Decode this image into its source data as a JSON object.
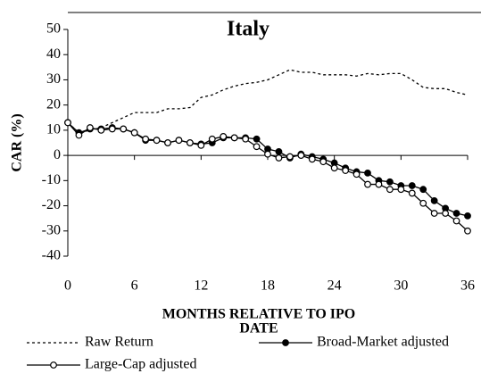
{
  "chart_data": {
    "type": "line",
    "title": "Italy",
    "ylabel": "CAR (%)",
    "xlabel": [
      "MONTHS RELATIVE TO IPO",
      "DATE"
    ],
    "x": [
      0,
      1,
      2,
      3,
      4,
      5,
      6,
      7,
      8,
      9,
      10,
      11,
      12,
      13,
      14,
      15,
      16,
      17,
      18,
      19,
      20,
      21,
      22,
      23,
      24,
      25,
      26,
      27,
      28,
      29,
      30,
      31,
      32,
      33,
      34,
      35,
      36
    ],
    "xlim": [
      0,
      36
    ],
    "xticks": [
      0,
      6,
      12,
      18,
      24,
      30,
      36
    ],
    "ylim": [
      -40,
      50
    ],
    "yticks": [
      -40,
      -30,
      -20,
      -10,
      0,
      10,
      20,
      30,
      40,
      50
    ],
    "series": [
      {
        "name": "Raw Return",
        "color": "#000000",
        "dash": "dotted",
        "marker": null,
        "values": [
          13,
          9,
          10,
          11,
          13,
          15,
          17,
          17,
          17,
          18.5,
          18.5,
          19,
          23,
          24,
          26,
          27.5,
          28.5,
          29,
          30,
          32,
          34,
          33,
          33,
          32,
          32,
          32,
          31.5,
          32.5,
          32,
          32.5,
          32.5,
          30,
          27,
          26.5,
          26.5,
          25,
          24
        ]
      },
      {
        "name": "Broad-Market adjusted",
        "color": "#000000",
        "dash": "solid",
        "marker": "filled",
        "values": [
          13,
          9,
          10.5,
          10.5,
          11,
          10.5,
          9,
          6,
          6,
          5,
          6,
          5,
          4.5,
          5,
          7,
          7,
          7,
          6.5,
          2.5,
          1.5,
          -1,
          0.5,
          -0.5,
          -1.5,
          -3,
          -5,
          -6.5,
          -7,
          -10,
          -10.5,
          -12,
          -12,
          -13.5,
          -18,
          -21,
          -23,
          -24
        ]
      },
      {
        "name": "Large-Cap adjusted",
        "color": "#000000",
        "dash": "solid",
        "marker": "open",
        "values": [
          13,
          8,
          11,
          10,
          10.5,
          10.5,
          9,
          6.5,
          6,
          5,
          6,
          5,
          4,
          6.5,
          7.5,
          7,
          6.5,
          3.5,
          0.5,
          -1,
          -0.5,
          0,
          -1.5,
          -2.5,
          -5,
          -6,
          -7.5,
          -11.5,
          -11.5,
          -13.5,
          -13.5,
          -15,
          -19,
          -23,
          -23,
          -26,
          -30
        ]
      }
    ]
  }
}
